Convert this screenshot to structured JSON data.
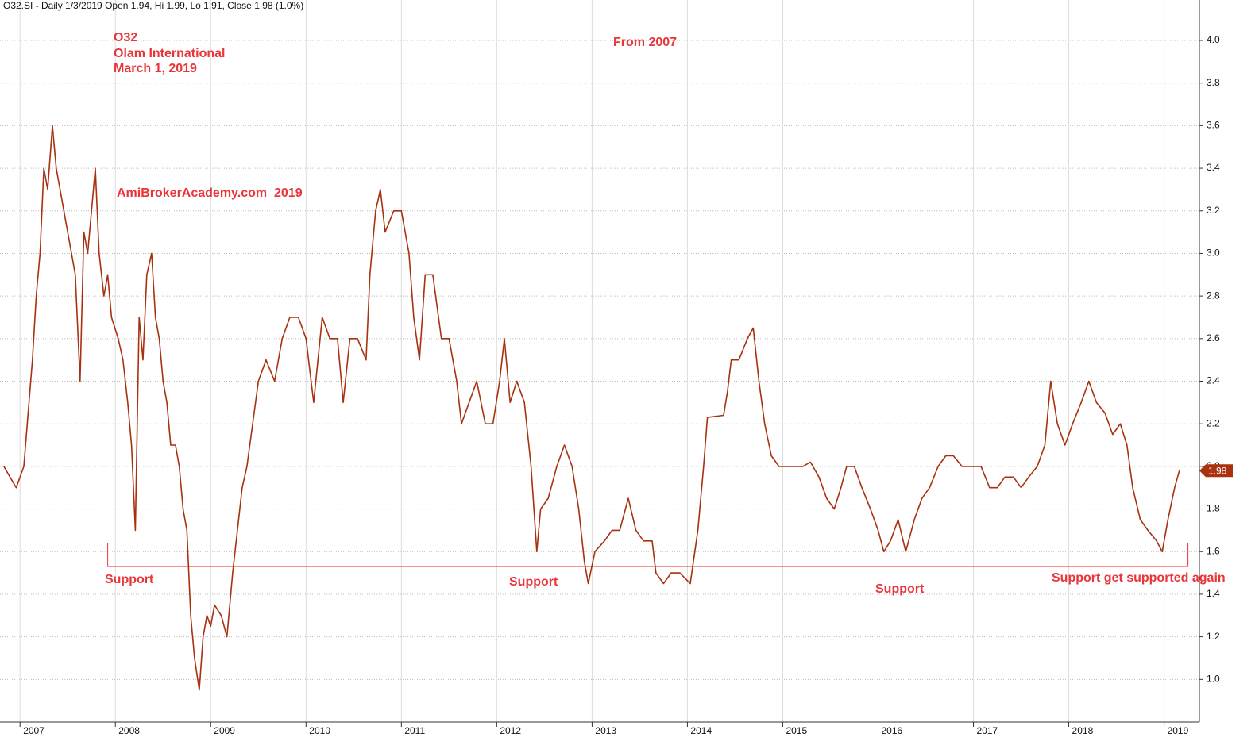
{
  "chart_data": {
    "type": "line",
    "title": "O32.SI - Daily 1/3/2019 Open 1.94, Hi 1.99, Lo 1.91, Close 1.98 (1.0%)",
    "annotations": [
      "O32",
      "Olam International",
      "March 1, 2019",
      "From 2007",
      "AmiBrokerAcademy.com  2019",
      "Support",
      "Support",
      "Support",
      "Support get supported again"
    ],
    "x": [
      2006.83,
      2006.96,
      2007.04,
      2007.13,
      2007.17,
      2007.21,
      2007.25,
      2007.29,
      2007.34,
      2007.38,
      2007.42,
      2007.46,
      2007.5,
      2007.54,
      2007.58,
      2007.63,
      2007.67,
      2007.71,
      2007.75,
      2007.79,
      2007.83,
      2007.88,
      2007.92,
      2007.96,
      2008.03,
      2008.08,
      2008.13,
      2008.17,
      2008.21,
      2008.25,
      2008.29,
      2008.33,
      2008.38,
      2008.42,
      2008.46,
      2008.5,
      2008.54,
      2008.58,
      2008.63,
      2008.67,
      2008.71,
      2008.75,
      2008.79,
      2008.83,
      2008.88,
      2008.92,
      2008.96,
      2009.0,
      2009.04,
      2009.11,
      2009.17,
      2009.23,
      2009.28,
      2009.33,
      2009.38,
      2009.44,
      2009.5,
      2009.58,
      2009.67,
      2009.75,
      2009.83,
      2009.92,
      2010.0,
      2010.08,
      2010.17,
      2010.25,
      2010.33,
      2010.39,
      2010.46,
      2010.54,
      2010.63,
      2010.67,
      2010.73,
      2010.78,
      2010.83,
      2010.92,
      2011.0,
      2011.08,
      2011.13,
      2011.19,
      2011.25,
      2011.33,
      2011.42,
      2011.5,
      2011.58,
      2011.63,
      2011.71,
      2011.79,
      2011.88,
      2011.96,
      2012.03,
      2012.08,
      2012.14,
      2012.21,
      2012.29,
      2012.36,
      2012.42,
      2012.46,
      2012.54,
      2012.63,
      2012.71,
      2012.79,
      2012.86,
      2012.92,
      2012.96,
      2013.03,
      2013.13,
      2013.21,
      2013.29,
      2013.38,
      2013.46,
      2013.54,
      2013.63,
      2013.67,
      2013.75,
      2013.83,
      2013.92,
      2014.03,
      2014.11,
      2014.17,
      2014.21,
      2014.38,
      2014.42,
      2014.46,
      2014.54,
      2014.63,
      2014.69,
      2014.75,
      2014.81,
      2014.88,
      2014.96,
      2015.04,
      2015.13,
      2015.21,
      2015.29,
      2015.38,
      2015.46,
      2015.54,
      2015.61,
      2015.67,
      2015.75,
      2015.83,
      2015.92,
      2016.0,
      2016.06,
      2016.13,
      2016.21,
      2016.29,
      2016.38,
      2016.46,
      2016.54,
      2016.63,
      2016.71,
      2016.79,
      2016.88,
      2016.96,
      2017.08,
      2017.17,
      2017.25,
      2017.33,
      2017.42,
      2017.5,
      2017.58,
      2017.67,
      2017.75,
      2017.81,
      2017.88,
      2017.96,
      2018.04,
      2018.13,
      2018.21,
      2018.29,
      2018.38,
      2018.46,
      2018.54,
      2018.61,
      2018.67,
      2018.75,
      2018.83,
      2018.92,
      2018.98,
      2019.04,
      2019.11,
      2019.16
    ],
    "series": [
      {
        "name": "O32.SI",
        "color": "#a8310f",
        "values": [
          2.0,
          1.9,
          2.0,
          2.5,
          2.8,
          3.0,
          3.4,
          3.3,
          3.6,
          3.4,
          3.3,
          3.2,
          3.1,
          3.0,
          2.9,
          2.4,
          3.1,
          3.0,
          3.2,
          3.4,
          3.0,
          2.8,
          2.9,
          2.7,
          2.6,
          2.5,
          2.3,
          2.1,
          1.7,
          2.7,
          2.5,
          2.9,
          3.0,
          2.7,
          2.6,
          2.4,
          2.3,
          2.1,
          2.1,
          2.0,
          1.8,
          1.7,
          1.3,
          1.1,
          0.95,
          1.2,
          1.3,
          1.25,
          1.35,
          1.3,
          1.2,
          1.5,
          1.7,
          1.9,
          2.0,
          2.2,
          2.4,
          2.5,
          2.4,
          2.6,
          2.7,
          2.7,
          2.6,
          2.3,
          2.7,
          2.6,
          2.6,
          2.3,
          2.6,
          2.6,
          2.5,
          2.9,
          3.2,
          3.3,
          3.1,
          3.2,
          3.2,
          3.0,
          2.7,
          2.5,
          2.9,
          2.9,
          2.6,
          2.6,
          2.4,
          2.2,
          2.3,
          2.4,
          2.2,
          2.2,
          2.4,
          2.6,
          2.3,
          2.4,
          2.3,
          2.0,
          1.6,
          1.8,
          1.85,
          2.0,
          2.1,
          2.0,
          1.8,
          1.55,
          1.45,
          1.6,
          1.65,
          1.7,
          1.7,
          1.85,
          1.7,
          1.65,
          1.65,
          1.5,
          1.45,
          1.5,
          1.5,
          1.45,
          1.7,
          2.0,
          2.23,
          2.24,
          2.35,
          2.5,
          2.5,
          2.6,
          2.65,
          2.4,
          2.2,
          2.05,
          2.0,
          2.0,
          2.0,
          2.0,
          2.02,
          1.95,
          1.85,
          1.8,
          1.9,
          2.0,
          2.0,
          1.9,
          1.8,
          1.7,
          1.6,
          1.65,
          1.75,
          1.6,
          1.75,
          1.85,
          1.9,
          2.0,
          2.05,
          2.05,
          2.0,
          2.0,
          2.0,
          1.9,
          1.9,
          1.95,
          1.95,
          1.9,
          1.95,
          2.0,
          2.1,
          2.4,
          2.2,
          2.1,
          2.2,
          2.3,
          2.4,
          2.3,
          2.25,
          2.15,
          2.2,
          2.1,
          1.9,
          1.75,
          1.7,
          1.65,
          1.6,
          1.75,
          1.9,
          1.98
        ]
      }
    ],
    "last_price": 1.98,
    "support_zone": {
      "x": [
        2007.92,
        2019.25
      ],
      "y": [
        1.53,
        1.64
      ]
    },
    "support_color": "#e8363a",
    "xlim": [
      2006.79,
      2019.37
    ],
    "xticks": [
      2007,
      2008,
      2009,
      2010,
      2011,
      2012,
      2013,
      2014,
      2015,
      2016,
      2017,
      2018,
      2019
    ],
    "ylim": [
      0.8,
      4.19
    ],
    "yticks": [
      {
        "value": 1,
        "label": "1.0"
      },
      1.2,
      1.4,
      1.6,
      1.8,
      {
        "value": 2,
        "label": "2.0"
      },
      2.2,
      2.4,
      2.6,
      2.8,
      {
        "value": 3,
        "label": "3.0"
      },
      3.2,
      3.4,
      3.6,
      3.8,
      {
        "value": 4,
        "label": "4.0"
      }
    ],
    "grid": true
  }
}
